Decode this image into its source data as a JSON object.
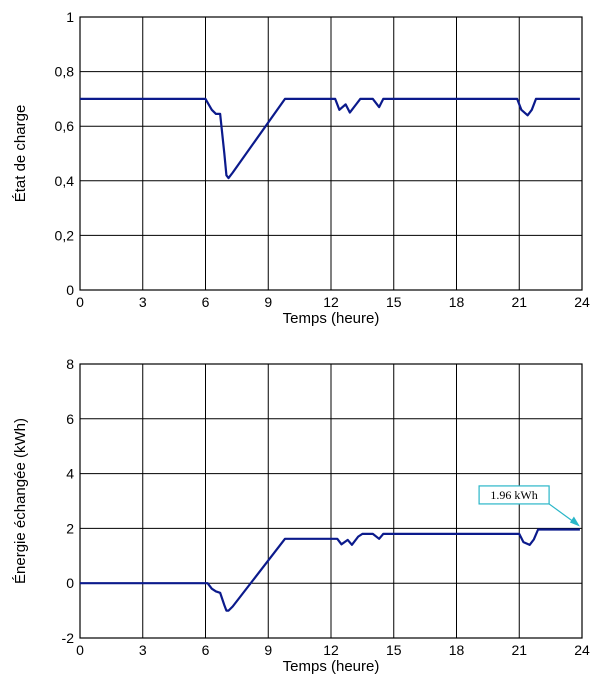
{
  "chart_data": [
    {
      "type": "line",
      "title": "",
      "xlabel": "Temps (heure)",
      "ylabel": "État de charge",
      "xlim": [
        0,
        24
      ],
      "ylim": [
        0,
        1
      ],
      "xticks": [
        0,
        3,
        6,
        9,
        12,
        15,
        18,
        21,
        24
      ],
      "yticks": [
        0,
        0.2,
        0.4,
        0.6,
        0.8,
        1
      ],
      "ytick_labels": [
        "0",
        "0,2",
        "0,4",
        "0,6",
        "0,8",
        "1"
      ],
      "grid": true,
      "series": [
        {
          "color": "#0b1a8c",
          "x": [
            0,
            6.0,
            6.3,
            6.5,
            6.7,
            6.9,
            7.0,
            7.1,
            7.3,
            9.8,
            12.2,
            12.4,
            12.7,
            12.9,
            13.2,
            13.4,
            13.6,
            14.0,
            14.3,
            14.5,
            14.7,
            20.9,
            21.1,
            21.4,
            21.6,
            21.8,
            23.9
          ],
          "y": [
            0.7,
            0.7,
            0.66,
            0.645,
            0.645,
            0.5,
            0.42,
            0.41,
            0.43,
            0.7,
            0.7,
            0.66,
            0.68,
            0.65,
            0.68,
            0.7,
            0.7,
            0.7,
            0.67,
            0.7,
            0.7,
            0.7,
            0.66,
            0.64,
            0.66,
            0.7,
            0.7
          ]
        }
      ]
    },
    {
      "type": "line",
      "title": "",
      "xlabel": "Temps (heure)",
      "ylabel": "Énergie échangée (kWh)",
      "xlim": [
        0,
        24
      ],
      "ylim": [
        -2,
        8
      ],
      "xticks": [
        0,
        3,
        6,
        9,
        12,
        15,
        18,
        21,
        24
      ],
      "yticks": [
        -2,
        0,
        2,
        4,
        6,
        8
      ],
      "ytick_labels": [
        "-2",
        "0",
        "2",
        "4",
        "6",
        "8"
      ],
      "grid": true,
      "series": [
        {
          "color": "#0b1a8c",
          "x": [
            0,
            6.1,
            6.3,
            6.5,
            6.7,
            6.9,
            7.0,
            7.1,
            7.3,
            9.8,
            12.3,
            12.5,
            12.8,
            13.0,
            13.3,
            13.5,
            13.7,
            14.0,
            14.3,
            14.5,
            14.7,
            21.0,
            21.2,
            21.5,
            21.7,
            21.9,
            23.9
          ],
          "y": [
            0,
            0,
            -0.2,
            -0.3,
            -0.35,
            -0.8,
            -1.0,
            -1.0,
            -0.85,
            1.62,
            1.62,
            1.42,
            1.58,
            1.4,
            1.7,
            1.8,
            1.8,
            1.8,
            1.62,
            1.8,
            1.8,
            1.8,
            1.5,
            1.4,
            1.6,
            1.96,
            1.96
          ]
        }
      ],
      "annotations": [
        {
          "text": "1.96 kWh",
          "x": 23.9,
          "y": 1.96
        }
      ]
    }
  ]
}
